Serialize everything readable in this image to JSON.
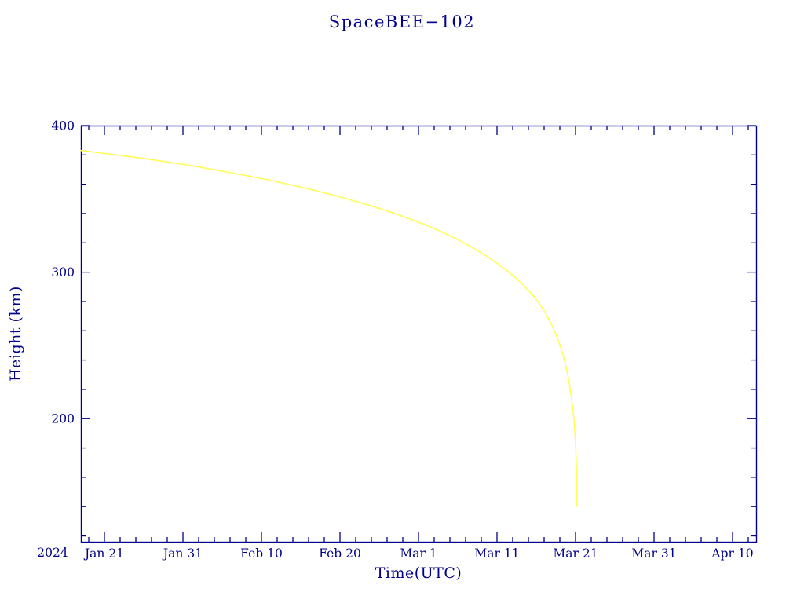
{
  "page": {
    "background": "#ffffff"
  },
  "chart_data": {
    "type": "line",
    "title": "SpaceBEE−102",
    "xlabel": "Time(UTC)",
    "ylabel": "Height (km)",
    "year_label": "2024",
    "axis_color": "#00008b",
    "line_color": "#ffff55",
    "grid": false,
    "legend": "none",
    "x_unit": "days from axis start (2024 Jan 18 = day 0)",
    "xlim": [
      0,
      86
    ],
    "ylim": [
      116,
      400
    ],
    "x_minor_step": 2,
    "y_minor_step": 20,
    "xticks": [
      {
        "pos": 3,
        "label": "Jan 21"
      },
      {
        "pos": 13,
        "label": "Jan 31"
      },
      {
        "pos": 23,
        "label": "Feb 10"
      },
      {
        "pos": 33,
        "label": "Feb 20"
      },
      {
        "pos": 43,
        "label": "Mar  1"
      },
      {
        "pos": 53,
        "label": "Mar 11"
      },
      {
        "pos": 63,
        "label": "Mar 21"
      },
      {
        "pos": 73,
        "label": "Mar 31"
      },
      {
        "pos": 83,
        "label": "Apr 10"
      }
    ],
    "yticks": [
      {
        "value": 200,
        "label": "200"
      },
      {
        "value": 300,
        "label": "300"
      },
      {
        "value": 400,
        "label": "400"
      }
    ],
    "series": [
      {
        "name": "SpaceBEE-102 orbital height",
        "color": "#ffff55",
        "points": [
          [
            0,
            383
          ],
          [
            3,
            381
          ],
          [
            6,
            379
          ],
          [
            9,
            376.8
          ],
          [
            12,
            374.4
          ],
          [
            15,
            371.8
          ],
          [
            18,
            369
          ],
          [
            21,
            366
          ],
          [
            24,
            362.8
          ],
          [
            27,
            359.3
          ],
          [
            30,
            355.5
          ],
          [
            33,
            351.4
          ],
          [
            36,
            346.8
          ],
          [
            39,
            341.8
          ],
          [
            42,
            336.2
          ],
          [
            44,
            332
          ],
          [
            46,
            327.4
          ],
          [
            48,
            322.2
          ],
          [
            50,
            316.4
          ],
          [
            52,
            309.8
          ],
          [
            54,
            302.2
          ],
          [
            55,
            297.8
          ],
          [
            56,
            293
          ],
          [
            57,
            287.6
          ],
          [
            58,
            281.6
          ],
          [
            59,
            273.6
          ],
          [
            60,
            263.6
          ],
          [
            60.5,
            257.6
          ],
          [
            61,
            250.4
          ],
          [
            61.3,
            245.4
          ],
          [
            61.6,
            239.6
          ],
          [
            61.9,
            232.6
          ],
          [
            62.2,
            224.2
          ],
          [
            62.4,
            217.4
          ],
          [
            62.6,
            209.2
          ],
          [
            62.8,
            199.2
          ],
          [
            62.95,
            188.4
          ],
          [
            63.05,
            177
          ],
          [
            63.12,
            165
          ],
          [
            63.17,
            152
          ],
          [
            63.2,
            140
          ]
        ]
      }
    ]
  }
}
